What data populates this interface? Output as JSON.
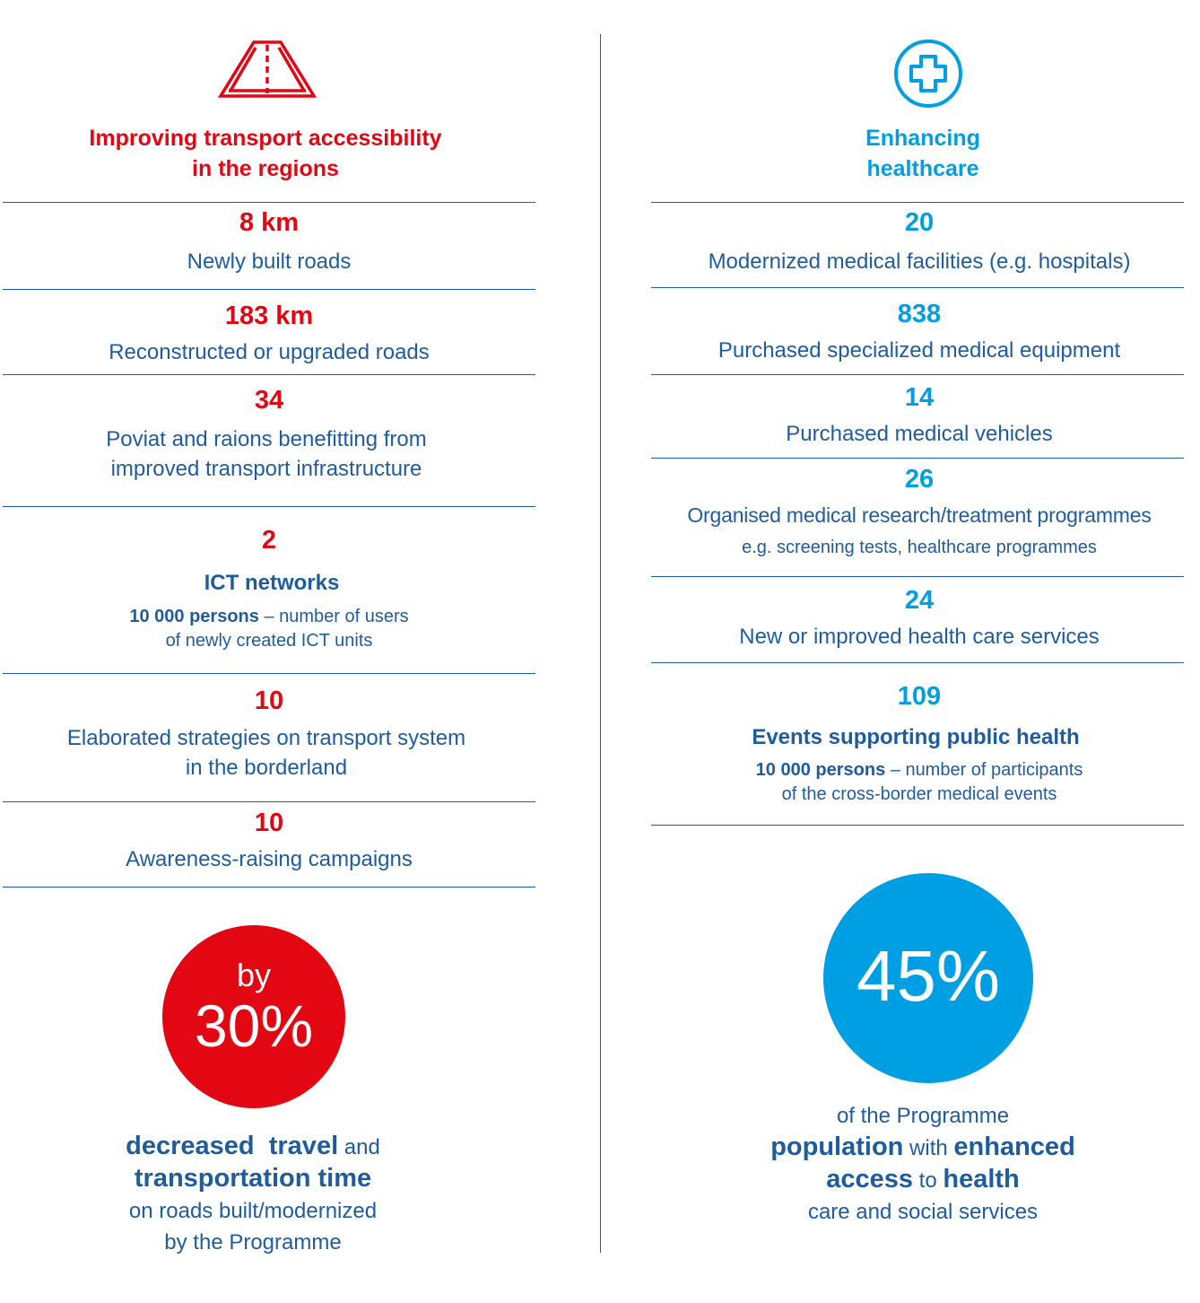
{
  "colors": {
    "transport_red": "#e30613",
    "health_blue": "#009fe3",
    "text_navy": "#1f5c9e"
  },
  "transport": {
    "icon": "road-icon",
    "heading_line1": "Improving transport accessibility",
    "heading_line2": "in the regions",
    "items": [
      {
        "value": "8 km",
        "label": "Newly built roads"
      },
      {
        "value": "183 km",
        "label": "Reconstructed or upgraded roads"
      },
      {
        "value": "34",
        "label_line1": "Poviat and raions benefitting from",
        "label_line2": "improved transport infrastructure"
      },
      {
        "value": "2",
        "label": "ICT networks",
        "detail_bold": "10 000 persons",
        "detail_rest": " – number of users",
        "detail_line2": "of newly created ICT units"
      },
      {
        "value": "10",
        "label_line1": "Elaborated strategies on transport system",
        "label_line2": "in the borderland"
      },
      {
        "value": "10",
        "label": "Awareness-raising campaigns"
      }
    ],
    "highlight": {
      "prefix": "by",
      "percent": "30%",
      "line1_bold": "decreased  travel",
      "line1_rest": " and",
      "line2_bold": "transportation time",
      "line3": "on roads built/modernized",
      "line4": "by the Programme"
    }
  },
  "health": {
    "icon": "medical-cross-icon",
    "heading_line1": "Enhancing",
    "heading_line2": "healthcare",
    "items": [
      {
        "value": "20",
        "label": "Modernized medical facilities (e.g. hospitals)"
      },
      {
        "value": "838",
        "label": "Purchased specialized medical equipment"
      },
      {
        "value": "14",
        "label": "Purchased medical vehicles"
      },
      {
        "value": "26",
        "label": "Organised medical research/treatment programmes",
        "detail": "e.g. screening tests, healthcare programmes"
      },
      {
        "value": "24",
        "label": "New or improved health care services"
      },
      {
        "value": "109",
        "label": "Events supporting public health",
        "detail_bold": "10 000 persons",
        "detail_rest": " – number of participants",
        "detail_line2": "of the cross-border medical events"
      }
    ],
    "highlight": {
      "percent": "45%",
      "line1": "of the Programme",
      "line2_bold_a": "population",
      "line2_rest": " with ",
      "line2_bold_b": "enhanced",
      "line3_bold_a": "access",
      "line3_rest": " to ",
      "line3_bold_b": "health",
      "line4": "care and social services"
    }
  }
}
